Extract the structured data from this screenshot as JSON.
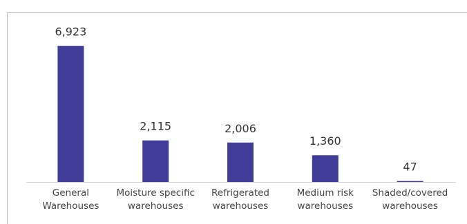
{
  "chart_data": {
    "type": "bar",
    "categories": [
      "General Warehouses",
      "Moisture specific warehouses",
      "Refrigerated warehouses",
      "Medium risk warehouses",
      "Shaded/covered warehouses"
    ],
    "values": [
      6923,
      2115,
      2006,
      1360,
      47
    ],
    "value_labels": [
      "6,923",
      "2,115",
      "2,006",
      "1,360",
      "47"
    ],
    "color": "#403e98",
    "ylim": [
      0,
      8000
    ]
  }
}
